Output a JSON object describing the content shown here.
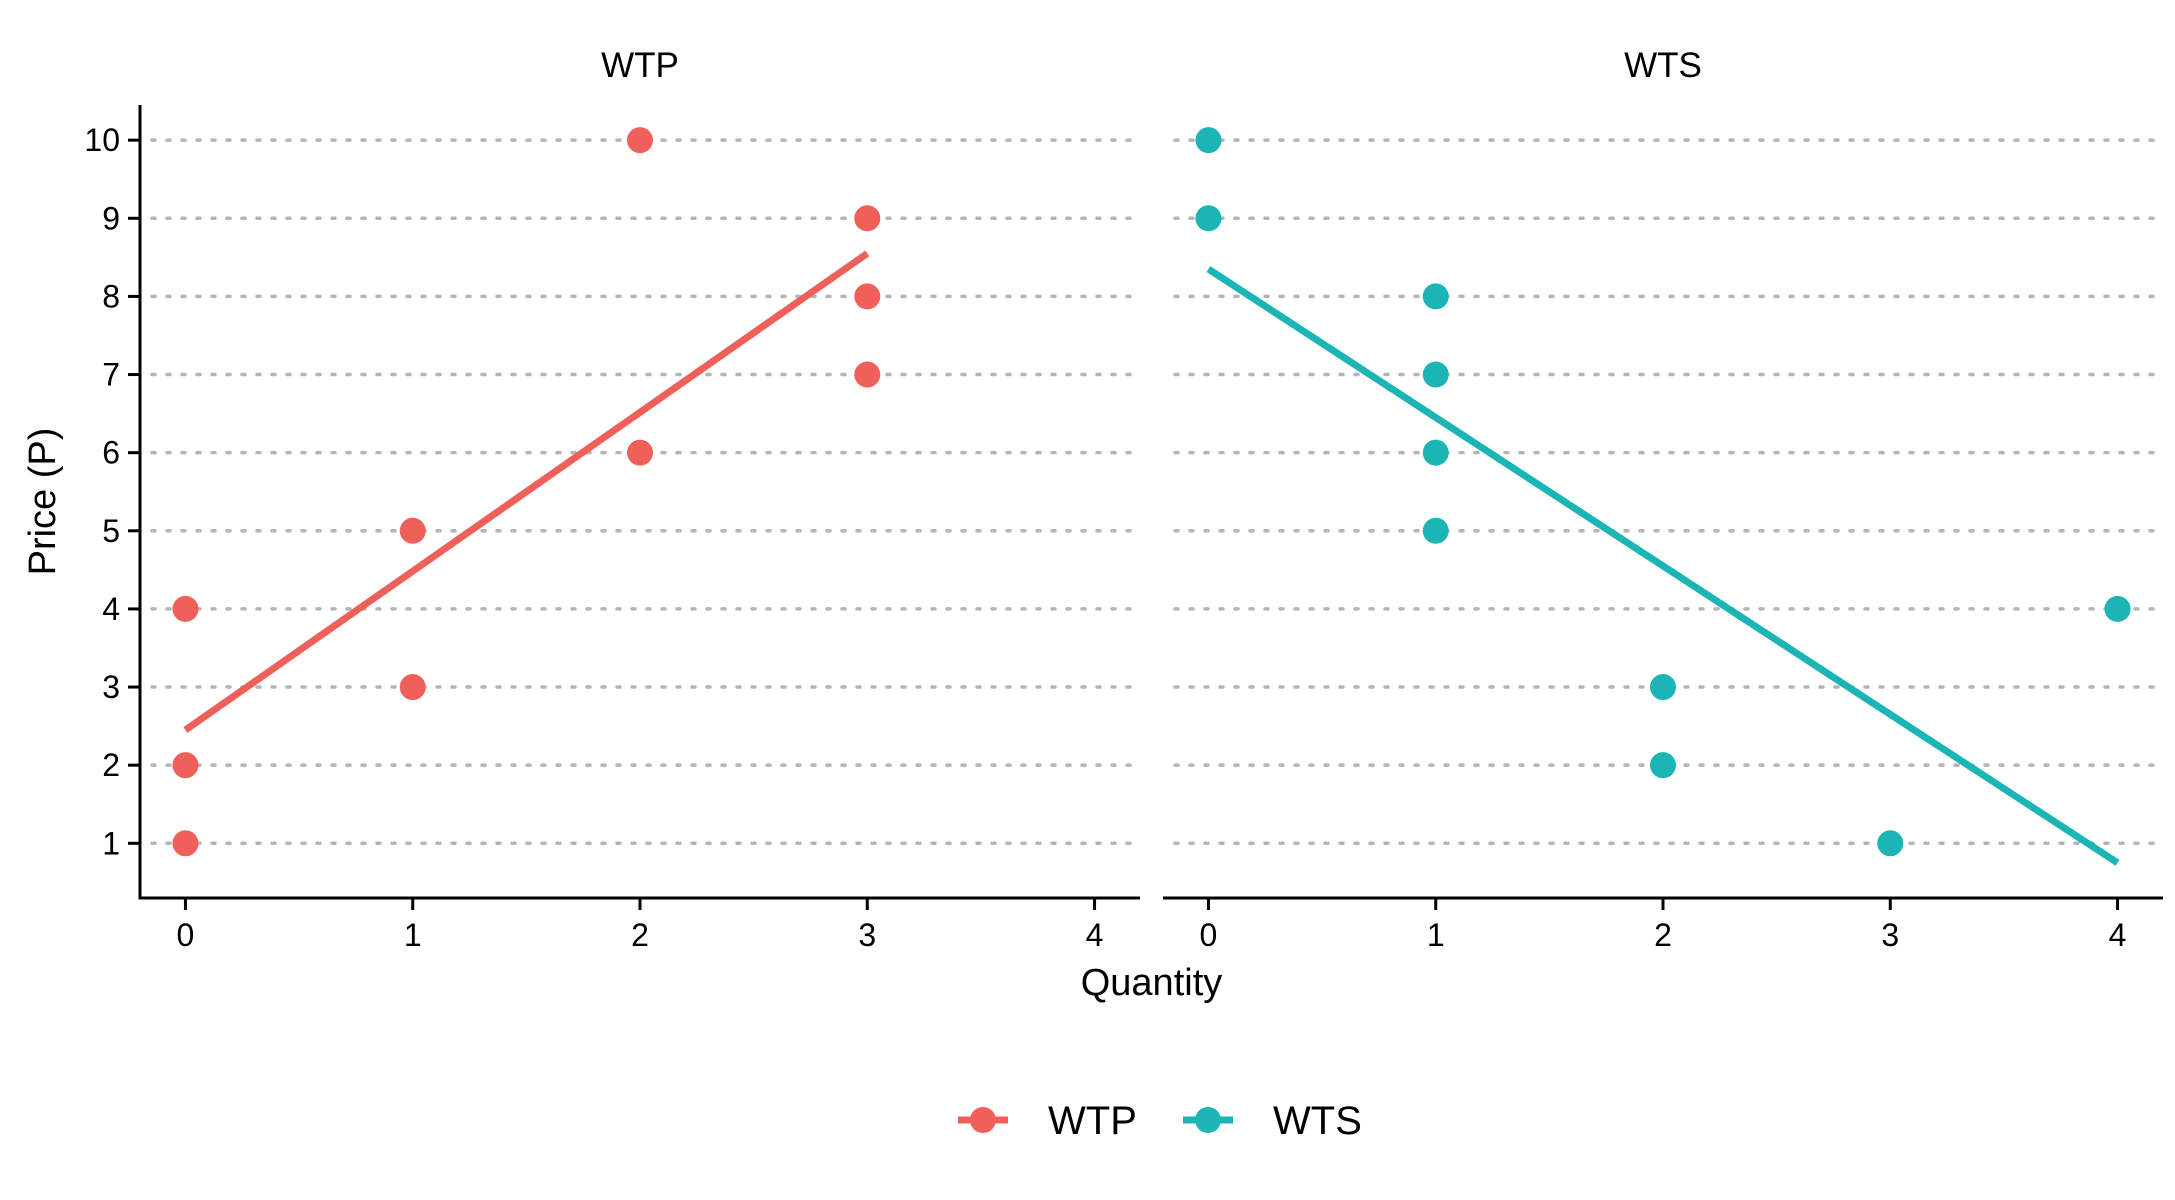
{
  "chart_data": {
    "type": "scatter",
    "xlabel": "Quantity",
    "ylabel": "Price (P)",
    "xlim": [
      -0.2,
      4.2
    ],
    "ylim": [
      0.3,
      10.45
    ],
    "x_ticks": [
      "0",
      "1",
      "2",
      "3",
      "4"
    ],
    "y_ticks": [
      "1",
      "2",
      "3",
      "4",
      "5",
      "6",
      "7",
      "8",
      "9",
      "10"
    ],
    "grid": "horizontal dotted",
    "legend_position": "bottom",
    "panels": [
      {
        "title": "WTP",
        "series_name": "WTP",
        "color": "#F0605A",
        "points": [
          {
            "x": 0,
            "y": 1
          },
          {
            "x": 0,
            "y": 2
          },
          {
            "x": 0,
            "y": 4
          },
          {
            "x": 1,
            "y": 3
          },
          {
            "x": 1,
            "y": 5
          },
          {
            "x": 2,
            "y": 6
          },
          {
            "x": 2,
            "y": 10
          },
          {
            "x": 3,
            "y": 7
          },
          {
            "x": 3,
            "y": 8
          },
          {
            "x": 3,
            "y": 9
          }
        ],
        "fit_line": {
          "x": [
            0,
            3
          ],
          "y": [
            2.45,
            8.55
          ]
        }
      },
      {
        "title": "WTS",
        "series_name": "WTS",
        "color": "#1BB5B5",
        "points": [
          {
            "x": 0,
            "y": 9
          },
          {
            "x": 0,
            "y": 10
          },
          {
            "x": 1,
            "y": 5
          },
          {
            "x": 1,
            "y": 6
          },
          {
            "x": 1,
            "y": 7
          },
          {
            "x": 1,
            "y": 8
          },
          {
            "x": 2,
            "y": 2
          },
          {
            "x": 2,
            "y": 3
          },
          {
            "x": 3,
            "y": 1
          },
          {
            "x": 4,
            "y": 4
          }
        ],
        "fit_line": {
          "x": [
            0,
            4
          ],
          "y": [
            8.35,
            0.75
          ]
        }
      }
    ],
    "legend": [
      {
        "label": "WTP",
        "color": "#F0605A"
      },
      {
        "label": "WTS",
        "color": "#1BB5B5"
      }
    ]
  }
}
